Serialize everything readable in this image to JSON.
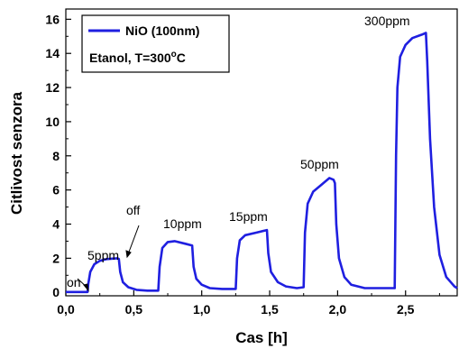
{
  "chart_data": {
    "type": "line",
    "xlabel": "Cas [h]",
    "ylabel": "Citlivost senzora",
    "xlim": [
      0,
      2.88
    ],
    "ylim": [
      -0.2,
      16.6
    ],
    "xticks": [
      0,
      0.5,
      1.0,
      1.5,
      2.0,
      2.5
    ],
    "xtick_labels": [
      "0,0",
      "0,5",
      "1,0",
      "1,5",
      "2,0",
      "2,5"
    ],
    "yticks": [
      0,
      2,
      4,
      6,
      8,
      10,
      12,
      14,
      16
    ],
    "ytick_labels": [
      "0",
      "2",
      "4",
      "6",
      "8",
      "10",
      "12",
      "14",
      "16"
    ],
    "grid": false,
    "legend": {
      "placement": "top-left",
      "series_label": "NiO (100nm)",
      "condition_prefix": "Etanol, T=300",
      "condition_superscript": "o",
      "condition_suffix": "C"
    },
    "line_color": "#1f1fe0",
    "series": [
      {
        "name": "NiO (100nm)",
        "points": [
          [
            0.0,
            0.02
          ],
          [
            0.16,
            0.02
          ],
          [
            0.165,
            0.5
          ],
          [
            0.18,
            1.2
          ],
          [
            0.21,
            1.65
          ],
          [
            0.25,
            1.85
          ],
          [
            0.3,
            1.95
          ],
          [
            0.38,
            2.0
          ],
          [
            0.39,
            1.95
          ],
          [
            0.4,
            1.2
          ],
          [
            0.42,
            0.6
          ],
          [
            0.46,
            0.3
          ],
          [
            0.52,
            0.15
          ],
          [
            0.6,
            0.1
          ],
          [
            0.68,
            0.1
          ],
          [
            0.69,
            1.5
          ],
          [
            0.71,
            2.6
          ],
          [
            0.75,
            2.95
          ],
          [
            0.8,
            3.0
          ],
          [
            0.88,
            2.85
          ],
          [
            0.93,
            2.75
          ],
          [
            0.94,
            1.5
          ],
          [
            0.96,
            0.8
          ],
          [
            1.0,
            0.45
          ],
          [
            1.06,
            0.25
          ],
          [
            1.15,
            0.2
          ],
          [
            1.25,
            0.2
          ],
          [
            1.26,
            2.0
          ],
          [
            1.28,
            3.05
          ],
          [
            1.32,
            3.35
          ],
          [
            1.4,
            3.5
          ],
          [
            1.48,
            3.65
          ],
          [
            1.49,
            2.3
          ],
          [
            1.51,
            1.2
          ],
          [
            1.56,
            0.6
          ],
          [
            1.62,
            0.35
          ],
          [
            1.7,
            0.25
          ],
          [
            1.75,
            0.3
          ],
          [
            1.76,
            3.5
          ],
          [
            1.78,
            5.2
          ],
          [
            1.82,
            5.9
          ],
          [
            1.88,
            6.3
          ],
          [
            1.94,
            6.7
          ],
          [
            1.97,
            6.6
          ],
          [
            1.98,
            6.4
          ],
          [
            1.99,
            4.0
          ],
          [
            2.01,
            2.0
          ],
          [
            2.05,
            0.9
          ],
          [
            2.1,
            0.45
          ],
          [
            2.2,
            0.25
          ],
          [
            2.3,
            0.25
          ],
          [
            2.42,
            0.25
          ],
          [
            2.43,
            8.0
          ],
          [
            2.44,
            12.0
          ],
          [
            2.46,
            13.8
          ],
          [
            2.5,
            14.5
          ],
          [
            2.55,
            14.9
          ],
          [
            2.62,
            15.1
          ],
          [
            2.65,
            15.2
          ],
          [
            2.66,
            13.5
          ],
          [
            2.68,
            9.0
          ],
          [
            2.71,
            5.0
          ],
          [
            2.75,
            2.2
          ],
          [
            2.8,
            0.9
          ],
          [
            2.86,
            0.35
          ],
          [
            2.88,
            0.25
          ]
        ]
      }
    ],
    "annotations": [
      {
        "text": "on",
        "x": 0.16,
        "y": 0.1
      },
      {
        "text": "5ppm",
        "x": 0.28,
        "y": 2.1
      },
      {
        "text": "off",
        "x": 0.41,
        "y": 2.0
      },
      {
        "text": "10ppm",
        "x": 0.81,
        "y": 3.3
      },
      {
        "text": "15ppm",
        "x": 1.38,
        "y": 3.9
      },
      {
        "text": "50ppm",
        "x": 1.9,
        "y": 7.0
      },
      {
        "text": "300ppm",
        "x": 2.58,
        "y": 15.6
      }
    ]
  }
}
